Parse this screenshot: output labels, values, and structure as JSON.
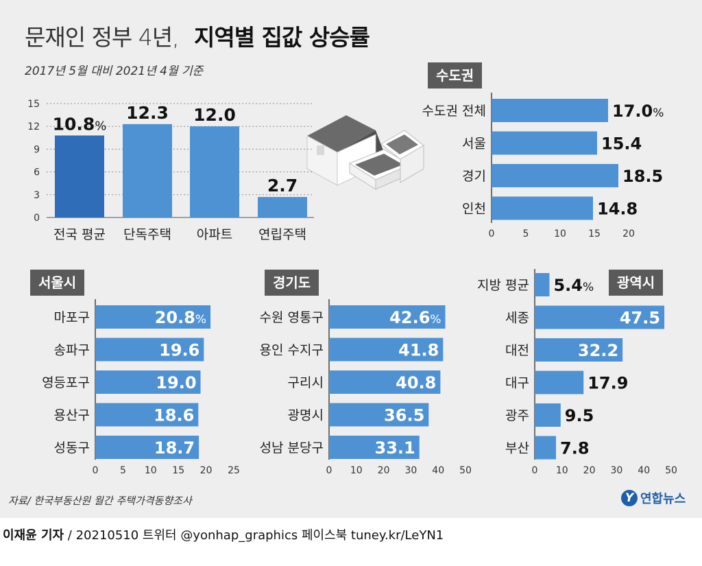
{
  "title": {
    "light": "문재인 정부 4년,",
    "bold": "지역별 집값 상승률"
  },
  "subtitle": "2017년 5월 대비 2021년 4월 기준",
  "colors": {
    "bar": "#4f92d4",
    "bar_dark": "#2f6db8",
    "tag_bg": "#5a5a5a",
    "panel_bg": "#eeeeee",
    "logo": "#1f5fa8"
  },
  "decoration": {
    "icon": "house-and-banknotes-illustration"
  },
  "source": "자료/ 한국부동산원 월간 주택가격동향조사",
  "logo": {
    "mark": "Y",
    "text": "연합뉴스"
  },
  "footer": {
    "reporter": "이재윤 기자",
    "rest": " / 20210510   트위터 @yonhap_graphics  페이스북 tuney.kr/LeYN1"
  },
  "chart_data": [
    {
      "id": "national",
      "type": "bar",
      "categories": [
        "전국 평균",
        "단독주택",
        "아파트",
        "연립주택"
      ],
      "values": [
        10.8,
        12.3,
        12.0,
        2.7
      ],
      "labels": [
        "10.8",
        "12.3",
        "12.0",
        "2.7"
      ],
      "unit": "%",
      "ylim": [
        0,
        15
      ],
      "yticks": [
        0,
        3,
        6,
        9,
        12,
        15
      ],
      "grid": true
    },
    {
      "id": "capital",
      "type": "bar",
      "orientation": "horizontal",
      "tag": "수도권",
      "categories": [
        "수도권 전체",
        "서울",
        "경기",
        "인천"
      ],
      "values": [
        17.0,
        15.4,
        18.5,
        14.8
      ],
      "labels": [
        "17.0",
        "15.4",
        "18.5",
        "14.8"
      ],
      "unit": "%",
      "xlim": [
        0,
        20
      ],
      "xticks": [
        0,
        5,
        10,
        15,
        20
      ]
    },
    {
      "id": "seoul",
      "type": "bar",
      "orientation": "horizontal",
      "tag": "서울시",
      "categories": [
        "마포구",
        "송파구",
        "영등포구",
        "용산구",
        "성동구"
      ],
      "values": [
        20.8,
        19.6,
        19.0,
        18.6,
        18.7
      ],
      "labels": [
        "20.8",
        "19.6",
        "19.0",
        "18.6",
        "18.7"
      ],
      "unit": "%",
      "xlim": [
        0,
        25
      ],
      "xticks": [
        0,
        5,
        10,
        15,
        20,
        25
      ]
    },
    {
      "id": "gyeonggi",
      "type": "bar",
      "orientation": "horizontal",
      "tag": "경기도",
      "categories": [
        "수원 영통구",
        "용인 수지구",
        "구리시",
        "광명시",
        "성남 분당구"
      ],
      "values": [
        42.6,
        41.8,
        40.8,
        36.5,
        33.1
      ],
      "labels": [
        "42.6",
        "41.8",
        "40.8",
        "36.5",
        "33.1"
      ],
      "unit": "%",
      "xlim": [
        0,
        50
      ],
      "xticks": [
        0,
        10,
        20,
        30,
        40,
        50
      ]
    },
    {
      "id": "metro",
      "type": "bar",
      "orientation": "horizontal",
      "tag": "광역시",
      "categories": [
        "지방 평균",
        "세종",
        "대전",
        "대구",
        "광주",
        "부산"
      ],
      "values": [
        5.4,
        47.5,
        32.2,
        17.9,
        9.5,
        7.8
      ],
      "labels": [
        "5.4",
        "47.5",
        "32.2",
        "17.9",
        "9.5",
        "7.8"
      ],
      "unit": "%",
      "xlim": [
        0,
        50
      ],
      "xticks": [
        0,
        10,
        20,
        30,
        40,
        50
      ]
    }
  ]
}
